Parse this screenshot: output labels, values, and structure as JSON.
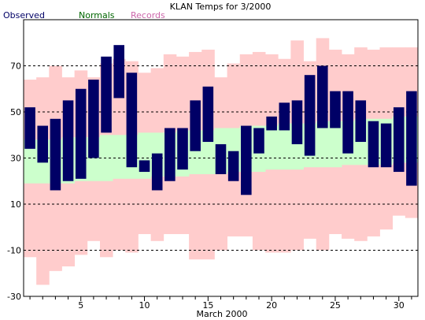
{
  "chart_data": {
    "type": "bar",
    "title": "KLAN Temps for 3/2000",
    "xlabel": "March 2000",
    "ylabel": "",
    "xlim": [
      0.5,
      31.5
    ],
    "ylim": [
      -30,
      90
    ],
    "y_ticks": [
      -30,
      -10,
      10,
      30,
      50,
      70
    ],
    "x_ticks": [
      5,
      10,
      15,
      20,
      25,
      30
    ],
    "grid": "dashed horizontal at y ticks",
    "legend": [
      {
        "name": "Observed",
        "color": "#000066"
      },
      {
        "name": "Normals",
        "color": "#006600"
      },
      {
        "name": "Records",
        "color": "#cc66aa"
      }
    ],
    "days": [
      1,
      2,
      3,
      4,
      5,
      6,
      7,
      8,
      9,
      10,
      11,
      12,
      13,
      14,
      15,
      16,
      17,
      18,
      19,
      20,
      21,
      22,
      23,
      24,
      25,
      26,
      27,
      28,
      29,
      30,
      31
    ],
    "series": [
      {
        "name": "Records",
        "color": "#ffcccc",
        "high": [
          64,
          65,
          70,
          65,
          68,
          65,
          71,
          73,
          72,
          67,
          69,
          75,
          74,
          76,
          77,
          65,
          71,
          75,
          76,
          75,
          73,
          81,
          72,
          82,
          77,
          75,
          78,
          77,
          78,
          78,
          78
        ],
        "low": [
          -13,
          -25,
          -19,
          -17,
          -12,
          -6,
          -13,
          -10,
          -11,
          -3,
          -6,
          -3,
          -3,
          -14,
          -14,
          -10,
          -4,
          -4,
          -10,
          -11,
          -11,
          -10,
          -5,
          -10,
          -3,
          -5,
          -6,
          -4,
          -1,
          5,
          4
        ]
      },
      {
        "name": "Normals",
        "color": "#ccffcc",
        "high": [
          38,
          38,
          38,
          39,
          39,
          39,
          40,
          40,
          40,
          41,
          41,
          41,
          42,
          42,
          42,
          43,
          43,
          44,
          44,
          44,
          45,
          45,
          45,
          46,
          46,
          46,
          47,
          47,
          47,
          48,
          48
        ],
        "low": [
          19,
          19,
          19,
          19,
          20,
          20,
          20,
          21,
          21,
          21,
          22,
          22,
          22,
          23,
          23,
          23,
          24,
          24,
          24,
          25,
          25,
          25,
          26,
          26,
          26,
          27,
          27,
          27,
          27,
          28,
          28
        ]
      },
      {
        "name": "Observed",
        "color": "#000066",
        "high": [
          52,
          44,
          47,
          55,
          60,
          64,
          74,
          79,
          67,
          29,
          32,
          43,
          43,
          55,
          61,
          36,
          33,
          44,
          43,
          48,
          54,
          55,
          66,
          70,
          59,
          59,
          55,
          46,
          45,
          52,
          59
        ],
        "low": [
          34,
          28,
          16,
          20,
          21,
          30,
          41,
          56,
          26,
          24,
          16,
          20,
          25,
          33,
          37,
          23,
          20,
          14,
          32,
          42,
          42,
          36,
          31,
          43,
          43,
          32,
          37,
          26,
          26,
          24,
          18
        ]
      }
    ]
  }
}
